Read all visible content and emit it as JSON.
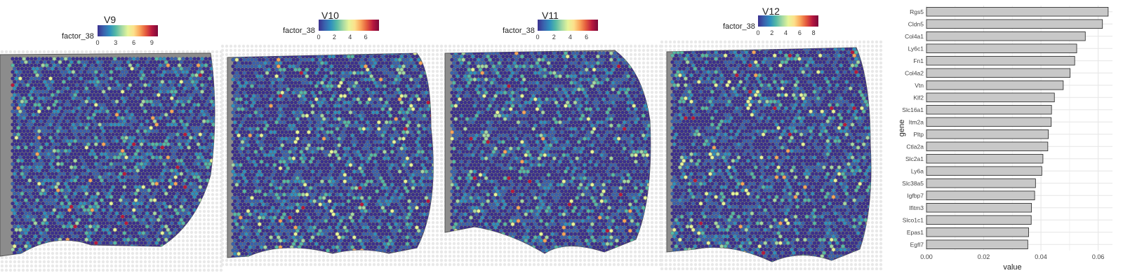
{
  "colors": {
    "spectral": [
      "#3B2F8F",
      "#3A62AE",
      "#2F8FBE",
      "#55B9A5",
      "#A3D8A4",
      "#E6F59A",
      "#FDE08B",
      "#F9A45A",
      "#E45A3D",
      "#B8183F",
      "#7A0A3A"
    ],
    "tissue_gray": "#8c8c8c",
    "bar_fill": "#c8c8c8",
    "bar_stroke": "#222222",
    "grid": "#e6e6e6"
  },
  "panels": [
    {
      "title": "V9",
      "legend_label": "factor_38",
      "ticks": [
        {
          "label": "0",
          "frac": 0.0
        },
        {
          "label": "3",
          "frac": 0.3
        },
        {
          "label": "6",
          "frac": 0.6
        },
        {
          "label": "9",
          "frac": 0.9
        }
      ]
    },
    {
      "title": "V10",
      "legend_label": "factor_38",
      "ticks": [
        {
          "label": "0",
          "frac": 0.0
        },
        {
          "label": "2",
          "frac": 0.26
        },
        {
          "label": "4",
          "frac": 0.52
        },
        {
          "label": "6",
          "frac": 0.78
        }
      ]
    },
    {
      "title": "V11",
      "legend_label": "factor_38",
      "ticks": [
        {
          "label": "0",
          "frac": 0.0
        },
        {
          "label": "2",
          "frac": 0.27
        },
        {
          "label": "4",
          "frac": 0.54
        },
        {
          "label": "6",
          "frac": 0.81
        }
      ]
    },
    {
      "title": "V12",
      "legend_label": "factor_38",
      "ticks": [
        {
          "label": "0",
          "frac": 0.0
        },
        {
          "label": "2",
          "frac": 0.23
        },
        {
          "label": "4",
          "frac": 0.46
        },
        {
          "label": "6",
          "frac": 0.69
        },
        {
          "label": "8",
          "frac": 0.92
        }
      ]
    }
  ],
  "chart_data": [
    {
      "type": "bar",
      "orientation": "horizontal",
      "xlabel": "value",
      "ylabel": "gene",
      "xlim": [
        0,
        0.065
      ],
      "xticks": [
        "0.00",
        "0.02",
        "0.04",
        "0.06"
      ],
      "categories": [
        "Rgs5",
        "Cldn5",
        "Col4a1",
        "Ly6c1",
        "Fn1",
        "Col4a2",
        "Vtn",
        "Klf2",
        "Slc16a1",
        "Itm2a",
        "Pltp",
        "Ctla2a",
        "Slc2a1",
        "Ly6a",
        "Slc38a5",
        "Igfbp7",
        "Ifitm3",
        "Slco1c1",
        "Epas1",
        "Egfl7"
      ],
      "values": [
        0.0635,
        0.0615,
        0.0555,
        0.0525,
        0.0518,
        0.0502,
        0.0478,
        0.0447,
        0.0437,
        0.0436,
        0.0426,
        0.0424,
        0.0407,
        0.0403,
        0.0381,
        0.0378,
        0.0367,
        0.0366,
        0.0357,
        0.0354
      ]
    }
  ]
}
